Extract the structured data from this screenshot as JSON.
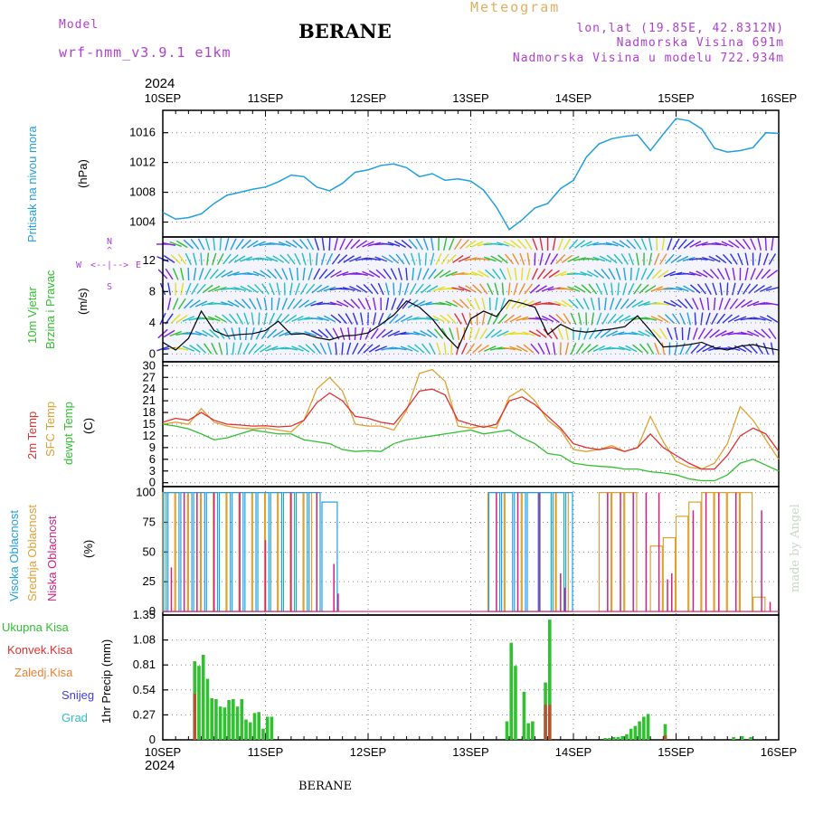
{
  "header": {
    "model_label": "Model",
    "model_name": "wrf-nmm_v3.9.1  e1km",
    "title": "BERANE",
    "product": "Meteogram",
    "coords": "lon,lat (19.85E, 42.8312N)",
    "elevation": "Nadmorska Visina 691m",
    "model_elevation": "Nadmorska Visina u modelu 722.934m",
    "year_top": "2024",
    "year_bottom": "2024",
    "footer_title": "BERANE",
    "credit": "made by Angel"
  },
  "x_axis": {
    "labels": [
      "10SEP",
      "11SEP",
      "12SEP",
      "13SEP",
      "14SEP",
      "15SEP",
      "16SEP"
    ]
  },
  "colors": {
    "pressure": "#20a0e0",
    "temp2m": "#e03030",
    "sfc": "#e0a030",
    "dew": "#30c030",
    "high": "#20a0e0",
    "mid": "#e0a030",
    "low": "#d02080",
    "total": "#30c030",
    "conv": "#e03030",
    "frozen": "#f08030",
    "snow": "#4040e0",
    "hail": "#30c0c0",
    "windspeed": "#000000"
  },
  "panels": {
    "pressure": {
      "label_name": "Pritisak na nivou mora",
      "unit": "(hPa)",
      "ticks": [
        "1004",
        "1008",
        "1012",
        "1016"
      ]
    },
    "wind": {
      "label_name1": "10m Vjetar",
      "label_name2": "Brzina i Pravac",
      "unit": "(m/s)",
      "ticks": [
        "0",
        "4",
        "8",
        "12"
      ],
      "compass_n": "N",
      "compass_e": "E",
      "compass_w": "W",
      "compass_s": "S"
    },
    "temp": {
      "label_2m": "2m Temp",
      "label_sfc": "SFC Temp",
      "label_dew": "dewpt Temp",
      "unit": "(C)",
      "ticks": [
        "0",
        "3",
        "6",
        "9",
        "12",
        "15",
        "18",
        "21",
        "24",
        "27",
        "30"
      ]
    },
    "cloud": {
      "label_high": "Visoka Oblacnost",
      "label_mid": "Srednja Oblacnost",
      "label_low": "Niska Oblacnost",
      "unit": "(%)",
      "ticks": [
        "0",
        "25",
        "50",
        "75",
        "100"
      ]
    },
    "precip": {
      "legend": [
        "Ukupna Kisa",
        "Konvek.Kisa",
        "Zaledj.Kisa",
        "Snijeg",
        "Grad"
      ],
      "unit": "1hr Precip (mm)",
      "ticks": [
        "0",
        "0.27",
        "0.54",
        "0.81",
        "1.08",
        "1.35"
      ]
    }
  },
  "chart_data": [
    {
      "type": "line",
      "title": "Pritisak na nivou mora",
      "ylabel": "(hPa)",
      "ylim": [
        1002,
        1019
      ],
      "x_hours": [
        0,
        3,
        6,
        9,
        12,
        15,
        18,
        21,
        24,
        27,
        30,
        33,
        36,
        39,
        42,
        45,
        48,
        51,
        54,
        57,
        60,
        63,
        66,
        69,
        72,
        75,
        78,
        81,
        84,
        87,
        90,
        93,
        96,
        99,
        102,
        105,
        108,
        111,
        114,
        117,
        120,
        123,
        126,
        129,
        132,
        135,
        138,
        141,
        144
      ],
      "series": [
        {
          "name": "MSLP",
          "values": [
            1005.3,
            1004.4,
            1004.6,
            1005.1,
            1006.5,
            1007.6,
            1008.0,
            1008.4,
            1008.7,
            1009.4,
            1010.3,
            1010.1,
            1008.7,
            1008.2,
            1009.2,
            1010.7,
            1011.0,
            1011.6,
            1011.8,
            1011.3,
            1010.1,
            1010.5,
            1009.6,
            1009.8,
            1009.5,
            1008.3,
            1006.0,
            1003.0,
            1004.3,
            1005.9,
            1006.5,
            1008.5,
            1009.6,
            1012.7,
            1014.5,
            1015.2,
            1015.5,
            1015.7,
            1013.6,
            1015.8,
            1017.9,
            1017.6,
            1016.5,
            1013.9,
            1013.4,
            1013.6,
            1014.0,
            1016.0,
            1015.9
          ]
        }
      ]
    },
    {
      "type": "line",
      "title": "10m Vjetar Brzina i Pravac",
      "ylabel": "(m/s)",
      "ylim": [
        -1,
        15
      ],
      "x_hours": [
        0,
        3,
        6,
        9,
        12,
        15,
        18,
        21,
        24,
        27,
        30,
        33,
        36,
        39,
        42,
        45,
        48,
        51,
        54,
        57,
        60,
        63,
        66,
        69,
        72,
        75,
        78,
        81,
        84,
        87,
        90,
        93,
        96,
        99,
        102,
        105,
        108,
        111,
        114,
        117,
        120,
        123,
        126,
        129,
        132,
        135,
        138,
        141,
        144
      ],
      "series": [
        {
          "name": "Brzina",
          "values": [
            1.5,
            0.5,
            2.0,
            5.5,
            3.0,
            2.3,
            2.5,
            2.6,
            3.0,
            4.2,
            2.5,
            2.6,
            2.1,
            1.8,
            2.3,
            2.4,
            2.7,
            3.8,
            5.0,
            6.8,
            6.0,
            4.5,
            2.4,
            0.7,
            4.5,
            5.5,
            4.8,
            6.9,
            6.5,
            6.0,
            2.5,
            3.8,
            3.0,
            2.8,
            3.0,
            3.2,
            3.5,
            4.9,
            3.0,
            0.9,
            1.0,
            1.2,
            1.5,
            0.8,
            0.5,
            1.0,
            1.2,
            0.8,
            0.5
          ]
        }
      ]
    },
    {
      "type": "line",
      "title": "2m Temp / SFC Temp / dewpt Temp",
      "ylabel": "(C)",
      "ylim": [
        -1,
        31
      ],
      "x_hours": [
        0,
        3,
        6,
        9,
        12,
        15,
        18,
        21,
        24,
        27,
        30,
        33,
        36,
        39,
        42,
        45,
        48,
        51,
        54,
        57,
        60,
        63,
        66,
        69,
        72,
        75,
        78,
        81,
        84,
        87,
        90,
        93,
        96,
        99,
        102,
        105,
        108,
        111,
        114,
        117,
        120,
        123,
        126,
        129,
        132,
        135,
        138,
        141,
        144
      ],
      "series": [
        {
          "name": "2m Temp",
          "values": [
            15.5,
            16.5,
            16.0,
            18.0,
            16.0,
            15.0,
            14.8,
            14.5,
            14.6,
            14.3,
            14.5,
            16.0,
            20.5,
            23.0,
            21.0,
            17.0,
            16.5,
            15.5,
            15.0,
            19.0,
            23.5,
            24.0,
            22.5,
            16.0,
            15.0,
            14.2,
            15.0,
            21.0,
            22.0,
            20.0,
            17.0,
            14.0,
            10.0,
            9.0,
            8.5,
            9.0,
            8.0,
            9.0,
            12.5,
            9.0,
            7.0,
            5.0,
            3.5,
            3.5,
            7.0,
            12.0,
            14.0,
            12.5,
            8.0
          ]
        },
        {
          "name": "SFC Temp",
          "values": [
            15.0,
            15.5,
            15.0,
            19.0,
            15.5,
            14.5,
            14.0,
            13.8,
            14.0,
            13.5,
            13.0,
            16.0,
            24.0,
            27.0,
            23.5,
            15.0,
            14.5,
            14.5,
            13.5,
            18.5,
            28.0,
            29.0,
            26.0,
            14.5,
            14.0,
            14.5,
            14.0,
            22.0,
            24.0,
            21.0,
            16.0,
            13.5,
            8.5,
            8.0,
            8.5,
            9.5,
            8.0,
            9.0,
            17.0,
            10.5,
            5.5,
            4.0,
            3.5,
            5.0,
            10.0,
            19.5,
            16.0,
            11.0,
            6.0
          ]
        },
        {
          "name": "dewpt Temp",
          "values": [
            15.0,
            14.5,
            13.8,
            12.5,
            11.0,
            11.5,
            12.5,
            13.5,
            13.0,
            12.5,
            12.5,
            11.0,
            10.5,
            10.0,
            8.5,
            8.0,
            8.2,
            8.0,
            10.0,
            11.0,
            11.5,
            12.0,
            12.5,
            13.0,
            13.5,
            12.5,
            13.0,
            13.5,
            11.5,
            10.0,
            7.5,
            7.0,
            5.0,
            4.5,
            4.2,
            4.0,
            3.5,
            3.5,
            2.8,
            2.5,
            2.0,
            1.0,
            0.5,
            0.5,
            2.0,
            5.0,
            6.0,
            4.5,
            3.0
          ]
        }
      ]
    },
    {
      "type": "bar",
      "title": "Visoka / Srednja / Niska Oblacnost",
      "ylabel": "(%)",
      "ylim": [
        0,
        100
      ],
      "bars_high": [
        [
          0,
          1,
          100
        ],
        [
          1,
          4,
          100
        ],
        [
          4,
          7,
          100
        ],
        [
          7,
          10,
          100
        ],
        [
          10,
          13,
          100
        ],
        [
          13,
          16,
          100
        ],
        [
          16,
          19,
          100
        ],
        [
          19,
          22,
          100
        ],
        [
          22,
          25,
          100
        ],
        [
          25,
          28,
          100
        ],
        [
          28,
          31,
          100
        ],
        [
          31,
          34,
          100
        ],
        [
          34,
          37,
          100
        ],
        [
          37,
          41,
          92
        ],
        [
          76,
          79,
          100
        ],
        [
          79,
          82,
          100
        ],
        [
          82,
          85,
          100
        ],
        [
          85,
          88,
          100
        ],
        [
          88,
          91,
          100
        ],
        [
          91,
          94,
          100
        ],
        [
          94,
          96,
          100
        ]
      ],
      "bars_mid": [
        [
          0,
          3,
          100
        ],
        [
          3,
          6,
          100
        ],
        [
          6,
          9,
          100
        ],
        [
          9,
          12,
          100
        ],
        [
          12,
          15,
          100
        ],
        [
          15,
          18,
          100
        ],
        [
          18,
          21,
          100
        ],
        [
          21,
          24,
          100
        ],
        [
          24,
          27,
          100
        ],
        [
          27,
          30,
          100
        ],
        [
          30,
          33,
          100
        ],
        [
          33,
          35,
          100
        ],
        [
          76,
          80,
          100
        ],
        [
          80,
          84,
          100
        ],
        [
          84,
          88,
          100
        ],
        [
          88,
          92,
          100
        ],
        [
          92,
          95,
          100
        ],
        [
          102,
          105,
          100
        ],
        [
          105,
          108,
          100
        ],
        [
          108,
          111,
          100
        ],
        [
          114,
          117,
          55
        ],
        [
          117,
          120,
          62
        ],
        [
          120,
          123,
          80
        ],
        [
          123,
          126,
          92
        ],
        [
          126,
          129,
          100
        ],
        [
          129,
          132,
          100
        ],
        [
          132,
          135,
          100
        ],
        [
          135,
          138,
          100
        ],
        [
          138,
          141,
          12
        ]
      ],
      "bars_low": [
        [
          2,
          37
        ],
        [
          5,
          100
        ],
        [
          8,
          100
        ],
        [
          12,
          100
        ],
        [
          18,
          100
        ],
        [
          24,
          60
        ],
        [
          30,
          100
        ],
        [
          36,
          100
        ],
        [
          40,
          40
        ],
        [
          41,
          15
        ],
        [
          78,
          100
        ],
        [
          83,
          100
        ],
        [
          88,
          100
        ],
        [
          93,
          32
        ],
        [
          94,
          20
        ],
        [
          104,
          100
        ],
        [
          107,
          100
        ],
        [
          110,
          100
        ],
        [
          113,
          100
        ],
        [
          116,
          100
        ],
        [
          118,
          27
        ],
        [
          119,
          32
        ],
        [
          124,
          85
        ],
        [
          127,
          100
        ],
        [
          130,
          100
        ],
        [
          134,
          100
        ],
        [
          140,
          85
        ],
        [
          142,
          8
        ]
      ]
    },
    {
      "type": "bar",
      "title": "1hr Precip (mm)",
      "ylabel": "1hr Precip (mm)",
      "ylim": [
        0,
        1.35
      ],
      "bars_total": [
        [
          7.5,
          0.85
        ],
        [
          8.5,
          0.8
        ],
        [
          9.5,
          0.92
        ],
        [
          10.5,
          0.66
        ],
        [
          11.5,
          0.45
        ],
        [
          12.5,
          0.44
        ],
        [
          13.5,
          0.36
        ],
        [
          14.5,
          0.35
        ],
        [
          15.5,
          0.43
        ],
        [
          16.5,
          0.44
        ],
        [
          17.5,
          0.36
        ],
        [
          18.5,
          0.44
        ],
        [
          19.5,
          0.22
        ],
        [
          20.5,
          0.19
        ],
        [
          21.5,
          0.29
        ],
        [
          22.5,
          0.3
        ],
        [
          23.5,
          0.12
        ],
        [
          24.5,
          0.25
        ],
        [
          25.5,
          0.25
        ],
        [
          80.5,
          0.2
        ],
        [
          81.5,
          1.05
        ],
        [
          82.5,
          0.8
        ],
        [
          84.5,
          0.52
        ],
        [
          85.5,
          0.18
        ],
        [
          86.5,
          0.2
        ],
        [
          89.5,
          0.62
        ],
        [
          90.5,
          1.3
        ],
        [
          103.5,
          0.02
        ],
        [
          104.5,
          0.02
        ],
        [
          105.5,
          0.03
        ],
        [
          106.5,
          0.03
        ],
        [
          107.5,
          0.04
        ],
        [
          108.5,
          0.06
        ],
        [
          109.5,
          0.12
        ],
        [
          110.5,
          0.15
        ],
        [
          111.5,
          0.2
        ],
        [
          112.5,
          0.25
        ],
        [
          113.5,
          0.28
        ],
        [
          117.5,
          0.17
        ],
        [
          133.5,
          0.03
        ],
        [
          135.5,
          0.04
        ],
        [
          137.5,
          0.03
        ]
      ],
      "bars_conv": [
        [
          7.5,
          0.5
        ],
        [
          89.5,
          0.38
        ],
        [
          90.5,
          0.38
        ],
        [
          117.5,
          0.05
        ]
      ]
    }
  ]
}
